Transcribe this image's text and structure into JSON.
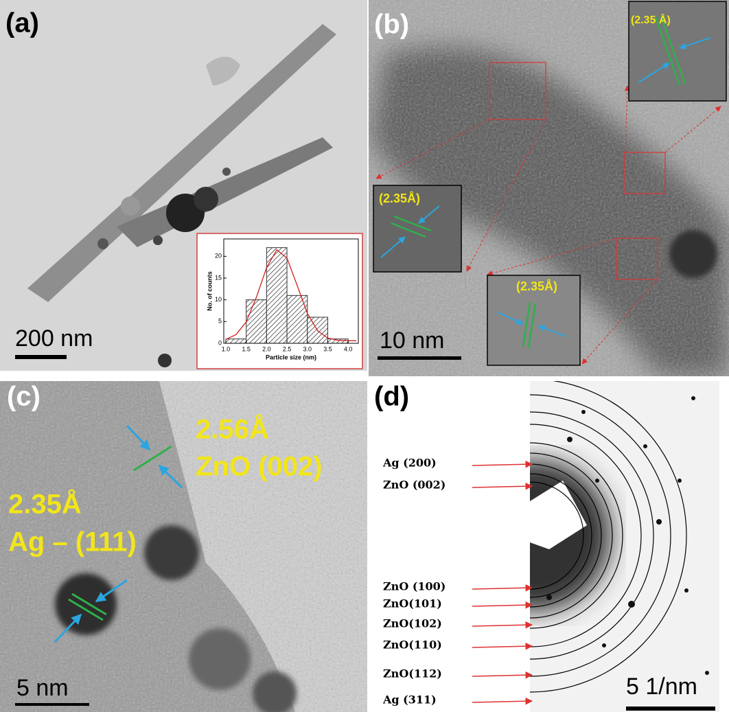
{
  "panels": [
    {
      "label": "(a)",
      "scale_bar": "200 nm"
    },
    {
      "label": "(b)",
      "scale_bar": "10 nm",
      "annotations": [
        "(2.35 Å)",
        "(2.35Å)",
        "(2.35Å)"
      ]
    },
    {
      "label": "(c)",
      "scale_bar": "5 nm",
      "annotations": [
        "2.56Å",
        "ZnO (002)",
        "2.35Å",
        "Ag – (111)"
      ]
    },
    {
      "label": "(d)",
      "scale_bar": "5 1/nm",
      "ring_labels": [
        "Ag (200)",
        "ZnO (002)",
        "ZnO (100)",
        "ZnO(101)",
        "ZnO(102)",
        "ZnO(110)",
        "ZnO(112)",
        "Ag (311)"
      ]
    }
  ],
  "chart_data": {
    "type": "histogram",
    "xlabel": "Particle size (nm)",
    "ylabel": "No. of counts",
    "bins": [
      1.0,
      1.5,
      2.0,
      2.5,
      3.0,
      3.5,
      4.0
    ],
    "values": [
      1,
      10,
      22,
      11,
      6,
      1
    ],
    "color": "#333333",
    "fit": {
      "color": "#d02020",
      "x": [
        1.0,
        1.25,
        1.5,
        1.75,
        2.0,
        2.25,
        2.5,
        2.75,
        3.0,
        3.25,
        3.5,
        3.75,
        4.0,
        4.2
      ],
      "values": [
        0.9,
        2.0,
        4.9,
        10.6,
        17.4,
        21.5,
        19.6,
        13.3,
        6.9,
        2.9,
        1.2,
        0.7,
        0.6,
        0.6
      ]
    },
    "xlim": [
      0.95,
      4.25
    ],
    "ylim": [
      0,
      24
    ],
    "xticks": [
      {
        "value": 1.0,
        "label": "1.0"
      },
      {
        "value": 1.5,
        "label": "1.5"
      },
      {
        "value": 2.0,
        "label": "2.0"
      },
      {
        "value": 2.5,
        "label": "2.5"
      },
      {
        "value": 3.0,
        "label": "3.0"
      },
      {
        "value": 3.5,
        "label": "3.5"
      },
      {
        "value": 4.0,
        "label": "4.0"
      }
    ],
    "yticks": [
      0,
      5,
      10,
      15,
      20
    ]
  }
}
